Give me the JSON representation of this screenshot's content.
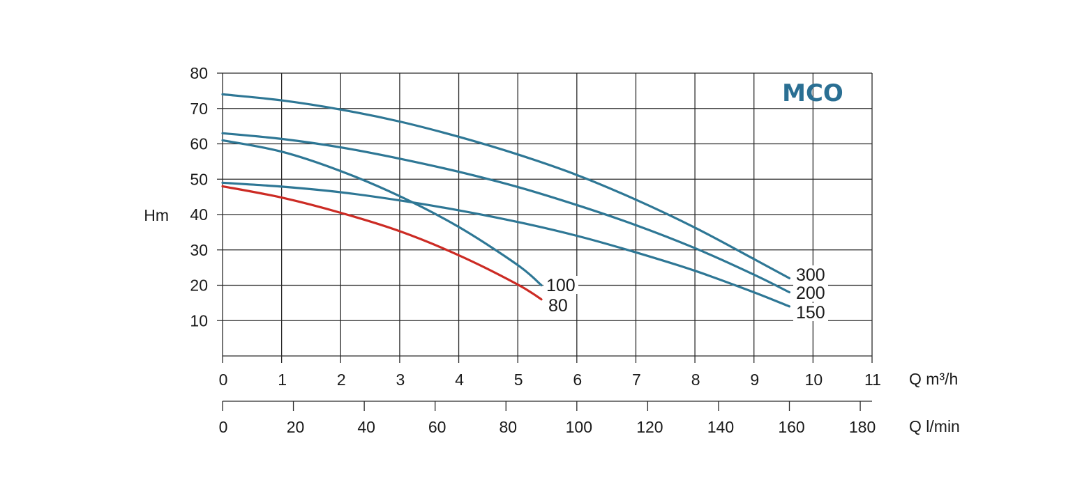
{
  "chart_data": {
    "type": "line",
    "title": "MCO",
    "ylabel": "Hm",
    "xlabel": "Q m³/h",
    "xlabel_secondary": "Q l/min",
    "xlim": [
      0,
      11
    ],
    "ylim": [
      0,
      80
    ],
    "x_ticks": [
      "0",
      "1",
      "2",
      "3",
      "4",
      "5",
      "6",
      "7",
      "8",
      "9",
      "10",
      "11"
    ],
    "y_ticks": [
      "10",
      "20",
      "30",
      "40",
      "50",
      "60",
      "70",
      "80"
    ],
    "x2_ticks": [
      "0",
      "20",
      "40",
      "60",
      "80",
      "100",
      "120",
      "140",
      "160",
      "180"
    ],
    "grid": true,
    "colors": {
      "blue": "#2e7795",
      "red": "#cc2b24",
      "brand": "#2a6f93"
    },
    "series": [
      {
        "name": "300",
        "color": "#2e7795",
        "x": [
          0,
          1,
          2,
          3,
          4,
          5,
          6,
          7,
          8,
          9,
          9.6
        ],
        "y": [
          74,
          72.3,
          69.7,
          66.3,
          62,
          57,
          51.2,
          44.2,
          36.3,
          27.4,
          22
        ]
      },
      {
        "name": "200",
        "color": "#2e7795",
        "x": [
          0,
          1,
          2,
          3,
          4,
          5,
          6,
          7,
          8,
          9,
          9.6
        ],
        "y": [
          63,
          61.4,
          59,
          55.8,
          52.1,
          47.8,
          42.7,
          37,
          30.5,
          23,
          18
        ]
      },
      {
        "name": "150",
        "color": "#2e7795",
        "x": [
          0,
          1,
          2,
          3,
          4,
          5,
          6,
          7,
          8,
          9,
          9.6
        ],
        "y": [
          49,
          47.9,
          46.3,
          44,
          41.2,
          37.9,
          34,
          29.3,
          24.1,
          18,
          14
        ]
      },
      {
        "name": "100",
        "color": "#2e7795",
        "x": [
          0,
          1,
          2,
          3,
          4,
          5,
          5.4
        ],
        "y": [
          61,
          57.8,
          52.3,
          45.2,
          36.5,
          25.7,
          20
        ]
      },
      {
        "name": "80",
        "color": "#cc2b24",
        "x": [
          0,
          1,
          2,
          3,
          4,
          5,
          5.4
        ],
        "y": [
          48,
          44.8,
          40.5,
          35.3,
          28.5,
          20.2,
          16
        ]
      }
    ]
  }
}
